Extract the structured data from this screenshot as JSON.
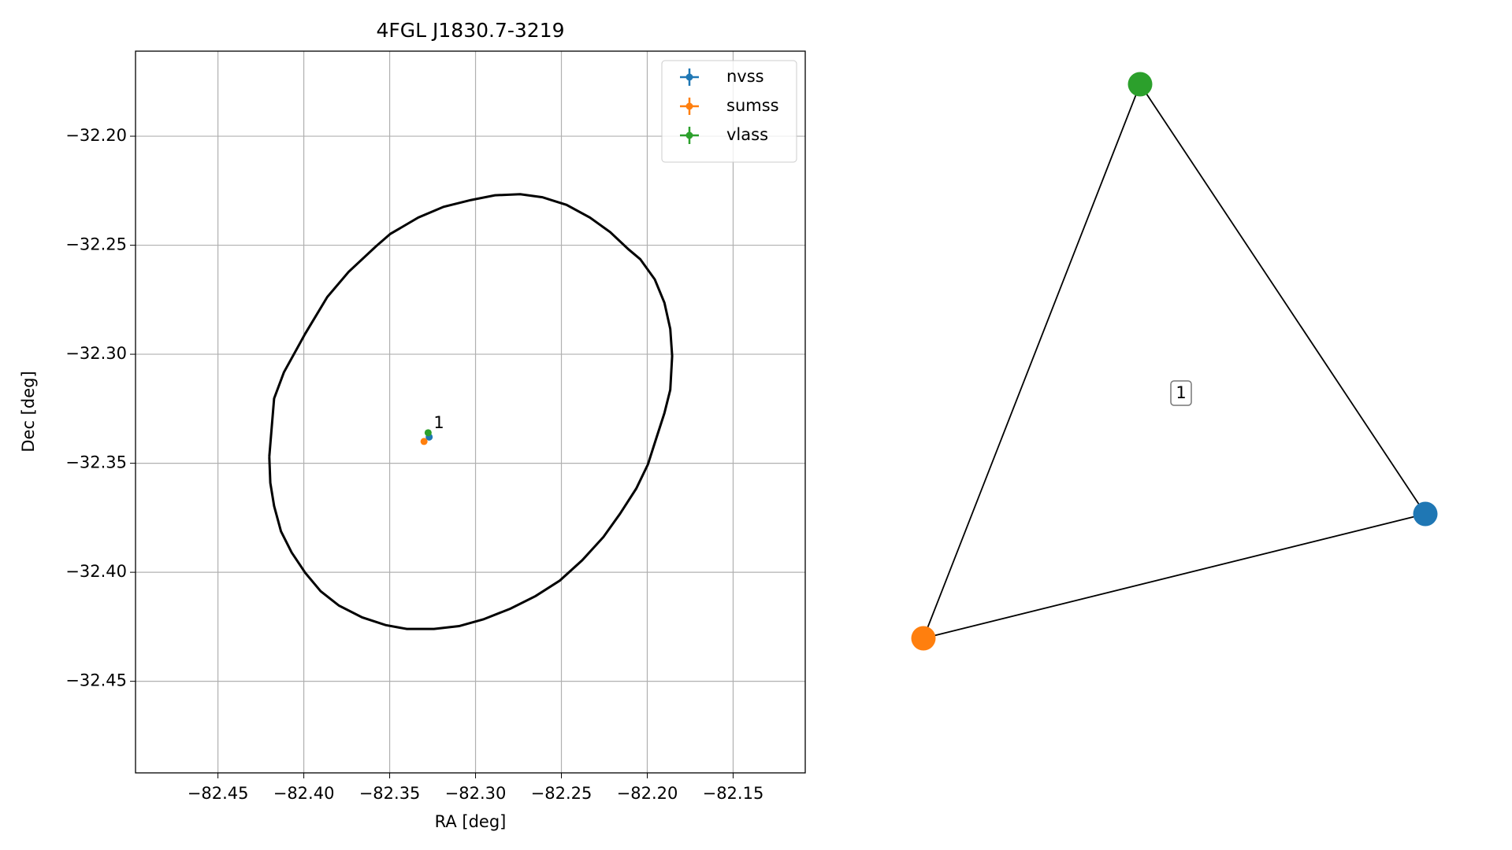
{
  "chart_data": {
    "type": "scatter",
    "title": "4FGL J1830.7-3219",
    "x_label": "RA [deg]",
    "y_label": "Dec [deg]",
    "xlim": [
      -82.498,
      -82.108
    ],
    "ylim": [
      -32.492,
      -32.161
    ],
    "xticks": [
      {
        "value": -82.45,
        "label": "−82.45"
      },
      {
        "value": -82.4,
        "label": "−82.40"
      },
      {
        "value": -82.35,
        "label": "−82.35"
      },
      {
        "value": -82.3,
        "label": "−82.30"
      },
      {
        "value": -82.25,
        "label": "−82.25"
      },
      {
        "value": -82.2,
        "label": "−82.20"
      },
      {
        "value": -82.15,
        "label": "−82.15"
      }
    ],
    "yticks": [
      {
        "value": -32.2,
        "label": "−32.20"
      },
      {
        "value": -32.25,
        "label": "−32.25"
      },
      {
        "value": -32.3,
        "label": "−32.30"
      },
      {
        "value": -32.35,
        "label": "−32.35"
      },
      {
        "value": -32.4,
        "label": "−32.40"
      },
      {
        "value": -32.45,
        "label": "−32.45"
      }
    ],
    "grid": true,
    "legend": "upper right",
    "series": [
      {
        "name": "nvss",
        "color": "#1f77b4",
        "x": [
          -82.327
        ],
        "y": [
          -32.338
        ]
      },
      {
        "name": "sumss",
        "color": "#ff7f0e",
        "x": [
          -82.33
        ],
        "y": [
          -32.34
        ]
      },
      {
        "name": "vlass",
        "color": "#2ca02c",
        "x": [
          -82.3276
        ],
        "y": [
          -32.336
        ]
      }
    ],
    "annotation": "1",
    "ellipse": {
      "color": "#000000",
      "x": [
        -82.4201,
        -82.4173,
        -82.4116,
        -82.3992,
        -82.3863,
        -82.3739,
        -82.3581,
        -82.3496,
        -82.3333,
        -82.3186,
        -82.3028,
        -82.2887,
        -82.274,
        -82.2611,
        -82.247,
        -82.2334,
        -82.2216,
        -82.2109,
        -82.2041,
        -82.1956,
        -82.19,
        -82.1866,
        -82.1855,
        -82.1866,
        -82.19,
        -82.1951,
        -82.1996,
        -82.2064,
        -82.2159,
        -82.2255,
        -82.2379,
        -82.2509,
        -82.265,
        -82.2797,
        -82.2955,
        -82.3096,
        -82.3242,
        -82.34,
        -82.3524,
        -82.366,
        -82.3795,
        -82.3902,
        -82.3992,
        -82.4071,
        -82.4133,
        -82.4173,
        -82.4195,
        -82.4201
      ],
      "y": [
        -32.347,
        -32.3203,
        -32.3083,
        -32.2906,
        -32.2737,
        -32.2622,
        -32.2506,
        -32.2448,
        -32.2373,
        -32.2324,
        -32.2293,
        -32.2271,
        -32.2266,
        -32.228,
        -32.2315,
        -32.2373,
        -32.244,
        -32.2519,
        -32.2564,
        -32.2657,
        -32.2764,
        -32.2884,
        -32.3008,
        -32.3163,
        -32.327,
        -32.3394,
        -32.3505,
        -32.3616,
        -32.3732,
        -32.3838,
        -32.3945,
        -32.4038,
        -32.4109,
        -32.4167,
        -32.4216,
        -32.4247,
        -32.426,
        -32.426,
        -32.4242,
        -32.4207,
        -32.4153,
        -32.4087,
        -32.4002,
        -32.3909,
        -32.3812,
        -32.3696,
        -32.359,
        -32.347
      ]
    }
  },
  "network": {
    "edge_label": "1"
  }
}
